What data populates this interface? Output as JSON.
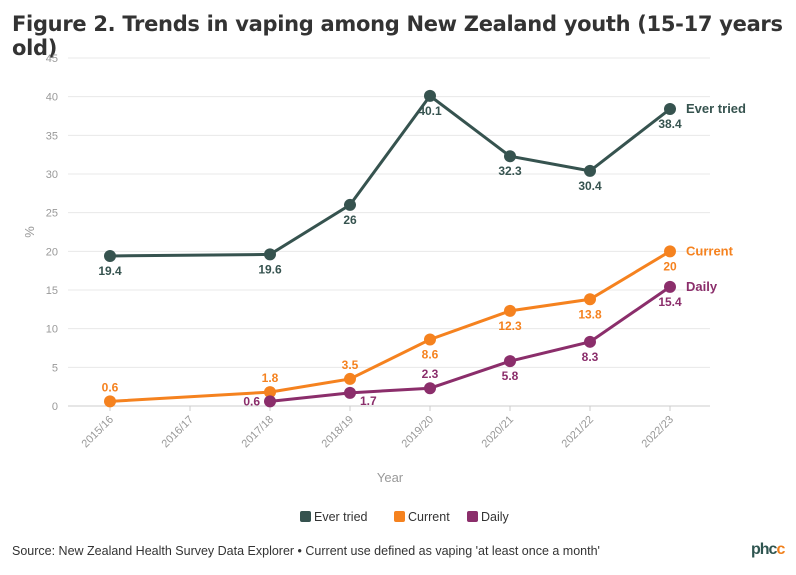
{
  "title": "Figure 2. Trends in vaping among New Zealand youth (15-17 years old)",
  "source": "Source: New Zealand Health Survey Data Explorer • Current use defined as vaping 'at least once a month'",
  "logo": "phcc",
  "chart_data": {
    "type": "line",
    "title": "Figure 2. Trends in vaping among New Zealand youth (15-17 years old)",
    "xlabel": "Year",
    "ylabel": "%",
    "categories": [
      "2015/16",
      "2016/17",
      "2017/18",
      "2018/19",
      "2019/20",
      "2020/21",
      "2021/22",
      "2022/23"
    ],
    "ylim": [
      0,
      45
    ],
    "yticks": [
      0,
      5,
      10,
      15,
      20,
      25,
      30,
      35,
      40,
      45
    ],
    "grid": true,
    "legend": "bottom",
    "series": [
      {
        "name": "Ever tried",
        "color": "#36534f",
        "values": [
          19.4,
          null,
          19.6,
          26,
          40.1,
          32.3,
          30.4,
          38.4
        ]
      },
      {
        "name": "Current",
        "color": "#f5821f",
        "values": [
          0.6,
          null,
          1.8,
          3.5,
          8.6,
          12.3,
          13.8,
          20
        ]
      },
      {
        "name": "Daily",
        "color": "#8b2e6b",
        "values": [
          null,
          null,
          0.6,
          1.7,
          2.3,
          5.8,
          8.3,
          15.4
        ]
      }
    ]
  }
}
